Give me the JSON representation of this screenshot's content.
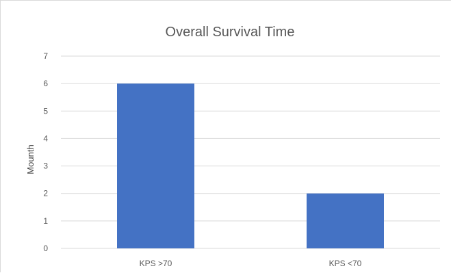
{
  "chart_data": {
    "type": "bar",
    "title": "Overall Survival Time",
    "xlabel": "",
    "ylabel": "Mounth",
    "categories": [
      "KPS >70",
      "KPS <70"
    ],
    "values": [
      6,
      2
    ],
    "ylim": [
      0,
      7
    ],
    "yticks": [
      "0",
      "1",
      "2",
      "3",
      "4",
      "5",
      "6",
      "7"
    ],
    "grid": true,
    "legend": "none",
    "bar_color": "#4472c4",
    "grid_color": "#d9d9d9"
  }
}
